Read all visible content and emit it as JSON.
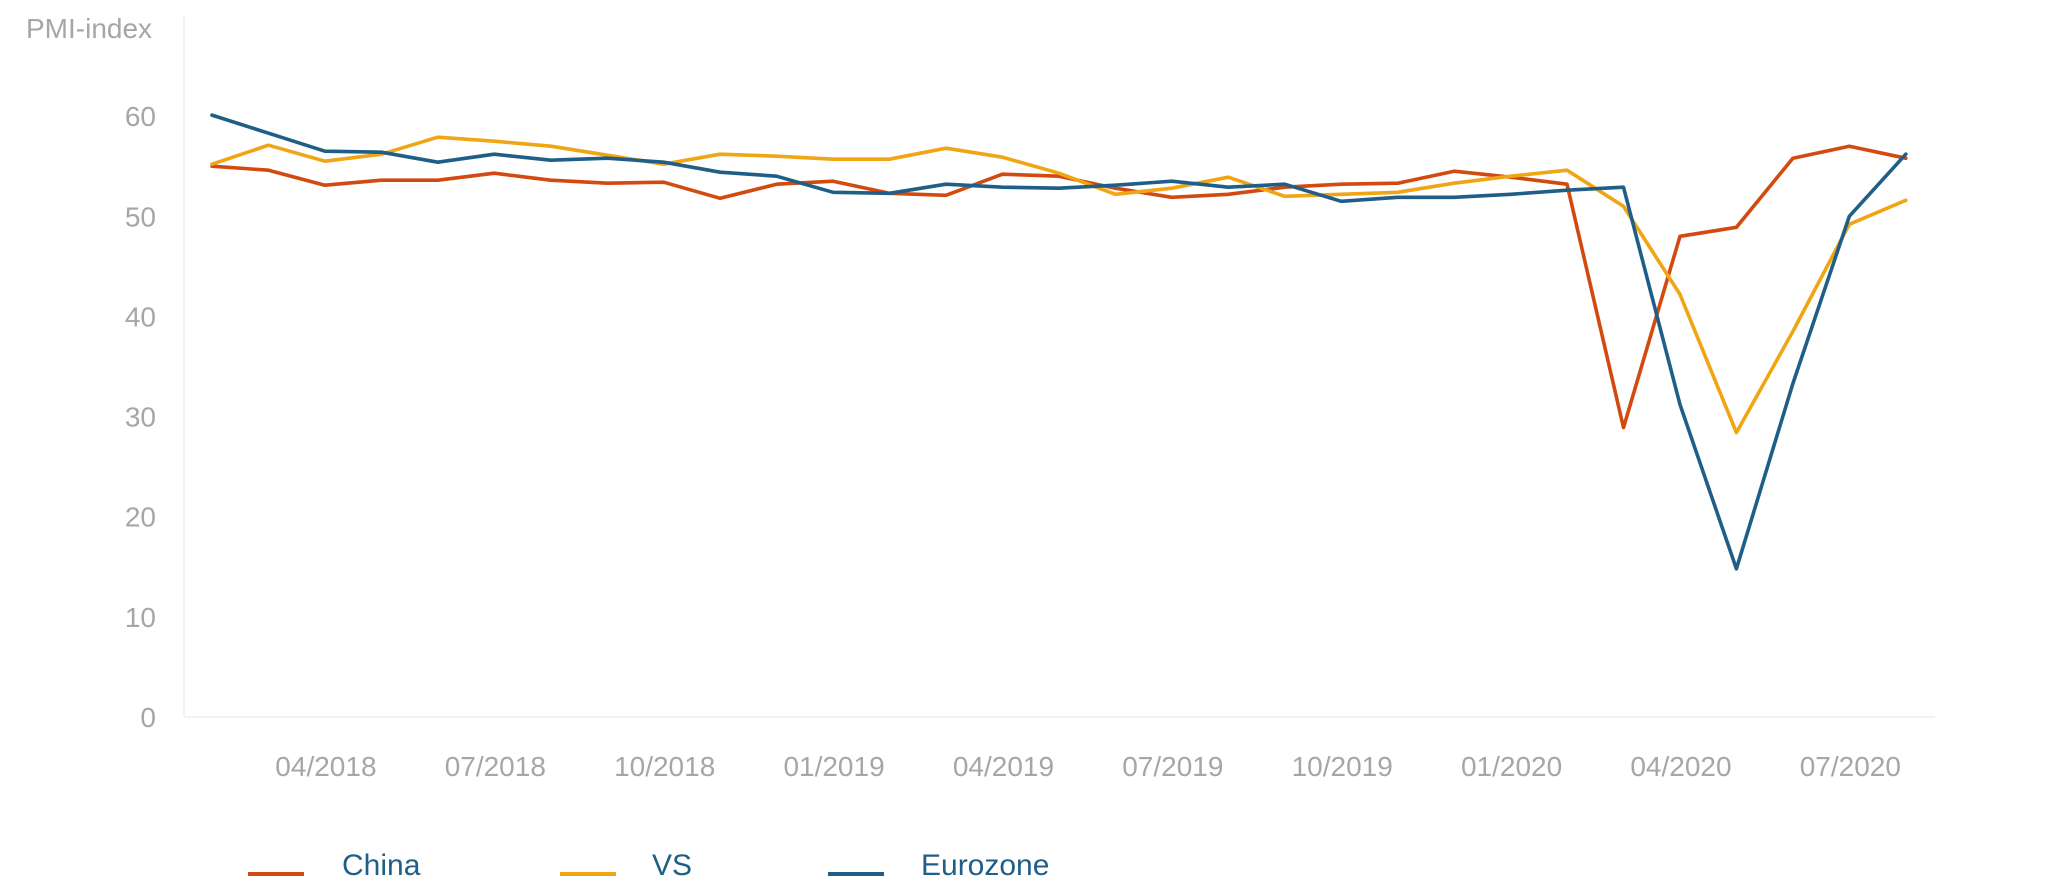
{
  "chart_data": {
    "type": "line",
    "ylabel": "PMI-index",
    "ylim": [
      0,
      70
    ],
    "yticks": [
      0,
      10,
      20,
      30,
      40,
      50,
      60
    ],
    "x": [
      "02/2018",
      "03/2018",
      "04/2018",
      "05/2018",
      "06/2018",
      "07/2018",
      "08/2018",
      "09/2018",
      "10/2018",
      "11/2018",
      "12/2018",
      "01/2019",
      "02/2019",
      "03/2019",
      "04/2019",
      "05/2019",
      "06/2019",
      "07/2019",
      "08/2019",
      "09/2019",
      "10/2019",
      "11/2019",
      "12/2019",
      "01/2020",
      "02/2020",
      "03/2020",
      "04/2020",
      "05/2020",
      "06/2020",
      "07/2020",
      "08/2020"
    ],
    "xtick_labels": [
      "04/2018",
      "07/2018",
      "10/2018",
      "01/2019",
      "04/2019",
      "07/2019",
      "10/2019",
      "01/2020",
      "04/2020",
      "07/2020"
    ],
    "grid": false,
    "legend_position": "bottom-left",
    "series": [
      {
        "name": "China",
        "color": "#d24a0f",
        "values": [
          55.0,
          54.6,
          53.1,
          53.6,
          53.6,
          54.3,
          53.6,
          53.3,
          53.4,
          51.8,
          53.2,
          53.5,
          52.3,
          52.1,
          54.2,
          54.0,
          52.8,
          51.9,
          52.2,
          52.9,
          53.2,
          53.3,
          54.5,
          53.9,
          53.2,
          28.9,
          48.0,
          48.9,
          55.8,
          57.0,
          55.8
        ]
      },
      {
        "name": "VS",
        "color": "#f0a514",
        "values": [
          55.2,
          57.1,
          55.5,
          56.2,
          57.9,
          57.5,
          57.0,
          56.1,
          55.2,
          56.2,
          56.0,
          55.7,
          55.7,
          56.8,
          55.9,
          54.3,
          52.2,
          52.8,
          53.9,
          52.0,
          52.2,
          52.4,
          53.3,
          54.0,
          54.6,
          51.0,
          42.2,
          28.4,
          38.5,
          49.2,
          51.6
        ]
      },
      {
        "name": "Eurozone",
        "color": "#1f5f87",
        "values": [
          60.1,
          58.3,
          56.5,
          56.4,
          55.4,
          56.2,
          55.6,
          55.8,
          55.4,
          54.4,
          54.0,
          52.4,
          52.3,
          53.2,
          52.9,
          52.8,
          53.1,
          53.5,
          52.9,
          53.2,
          51.5,
          51.9,
          51.9,
          52.2,
          52.6,
          52.9,
          31.2,
          14.8,
          33.3,
          50.0,
          56.2
        ]
      }
    ]
  }
}
